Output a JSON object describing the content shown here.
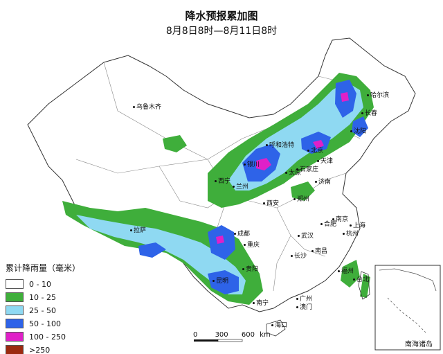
{
  "title": "降水预报累加图",
  "subtitle": "8月8日8时—8月11日8时",
  "legend": {
    "title": "累计降雨量（毫米）",
    "items": [
      {
        "label": "0 - 10",
        "color": "#ffffff"
      },
      {
        "label": "10 - 25",
        "color": "#3fae3b"
      },
      {
        "label": "25 - 50",
        "color": "#8fd9f2"
      },
      {
        "label": "50 - 100",
        "color": "#2e63e8"
      },
      {
        "label": "100 - 250",
        "color": "#e020c8"
      },
      {
        "label": ">250",
        "color": "#9b2a10"
      }
    ]
  },
  "cities": [
    {
      "name": "乌鲁木齐"
    },
    {
      "name": "哈尔滨"
    },
    {
      "name": "长春"
    },
    {
      "name": "沈阳"
    },
    {
      "name": "呼和浩特"
    },
    {
      "name": "北京"
    },
    {
      "name": "天津"
    },
    {
      "name": "银川"
    },
    {
      "name": "石家庄"
    },
    {
      "name": "太原"
    },
    {
      "name": "济南"
    },
    {
      "name": "西宁"
    },
    {
      "name": "兰州"
    },
    {
      "name": "郑州"
    },
    {
      "name": "西安"
    },
    {
      "name": "拉萨"
    },
    {
      "name": "南京"
    },
    {
      "name": "合肥"
    },
    {
      "name": "上海"
    },
    {
      "name": "杭州"
    },
    {
      "name": "成都"
    },
    {
      "name": "武汉"
    },
    {
      "name": "重庆"
    },
    {
      "name": "南昌"
    },
    {
      "name": "长沙"
    },
    {
      "name": "贵阳"
    },
    {
      "name": "福州"
    },
    {
      "name": "台北"
    },
    {
      "name": "昆明"
    },
    {
      "name": "南宁"
    },
    {
      "name": "广州"
    },
    {
      "name": "澳门"
    },
    {
      "name": "海口"
    }
  ],
  "scale": {
    "labels": [
      "0",
      "300",
      "600"
    ],
    "unit": "km"
  },
  "inset": {
    "label": "南海诸岛"
  }
}
